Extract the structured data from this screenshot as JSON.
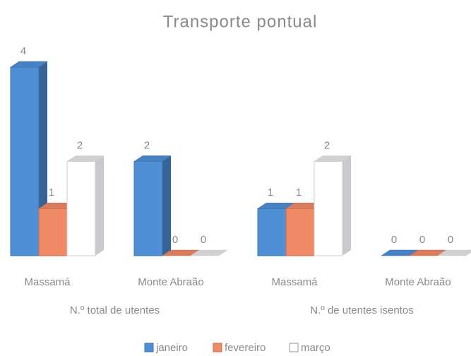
{
  "chart_data": {
    "type": "bar3d",
    "title": "Transporte pontual",
    "categories": [
      "Massamá",
      "Monte Abraão",
      "Massamá",
      "Monte Abraão"
    ],
    "groups": [
      "N.º total de utentes",
      "N.º de utentes isentos"
    ],
    "series": [
      {
        "name": "janeiro",
        "color": "#4f8fd6",
        "values": [
          4,
          2,
          1,
          0
        ]
      },
      {
        "name": "fevereiro",
        "color": "#f08a66",
        "values": [
          1,
          0,
          1,
          0
        ]
      },
      {
        "name": "março",
        "color": "#ffffff",
        "values": [
          2,
          0,
          2,
          0
        ]
      }
    ]
  }
}
